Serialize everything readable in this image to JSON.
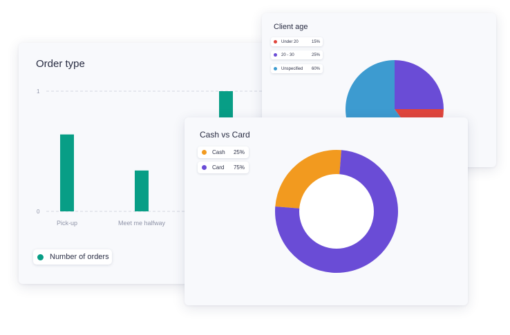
{
  "colors": {
    "teal": "#089e86",
    "purple": "#6a4cd6",
    "red": "#e0453c",
    "blue": "#3d9bd0",
    "orange": "#f29a1f",
    "grid": "#d3d6df",
    "axis_text": "#8f94a8"
  },
  "order_card": {
    "title": "Order type",
    "legend_label": "Number of orders"
  },
  "age_card": {
    "title": "Client age",
    "legend": [
      {
        "label": "Under 20",
        "value": "15%"
      },
      {
        "label": "20 - 30",
        "value": "25%"
      },
      {
        "label": "Unspecified",
        "value": "60%"
      }
    ]
  },
  "cash_card": {
    "title": "Cash vs Card",
    "legend": [
      {
        "label": "Cash",
        "value": "25%"
      },
      {
        "label": "Card",
        "value": "75%"
      }
    ]
  },
  "chart_data": [
    {
      "type": "bar",
      "title": "Order type",
      "categories": [
        "Pick-up",
        "Meet me halfway",
        ""
      ],
      "series": [
        {
          "name": "Number of orders",
          "values": [
            0.64,
            0.34,
            1
          ]
        }
      ],
      "ylim": [
        0,
        1
      ],
      "yticks": [
        "0",
        "1"
      ],
      "grid": true,
      "legend": "bottom-left"
    },
    {
      "type": "pie",
      "title": "Client age",
      "labels": [
        "Under 20",
        "20 - 30",
        "Unspecified"
      ],
      "values": [
        15,
        25,
        60
      ],
      "legend": "top-left"
    },
    {
      "type": "pie",
      "title": "Cash vs Card",
      "labels": [
        "Cash",
        "Card"
      ],
      "values": [
        25,
        75
      ],
      "donut": true,
      "legend": "top-left"
    }
  ]
}
